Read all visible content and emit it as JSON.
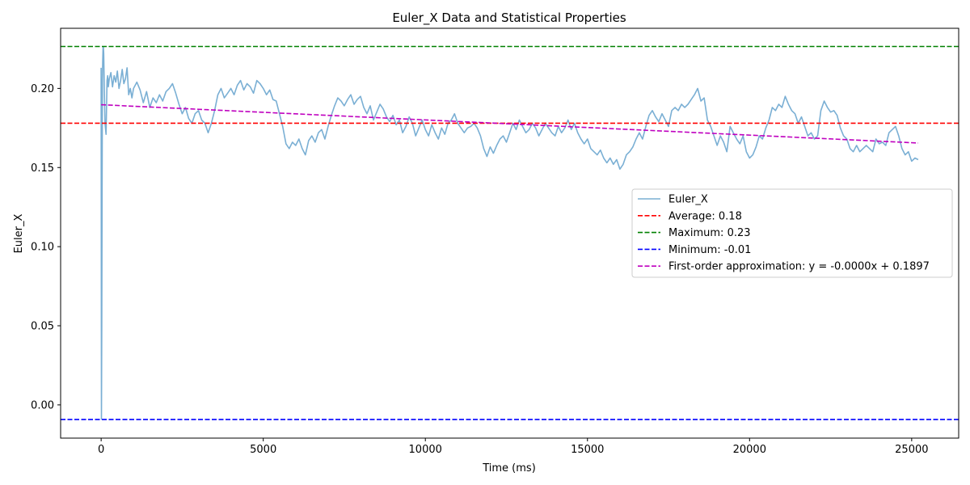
{
  "chart_data": {
    "type": "line",
    "title": "Euler_X Data and Statistical Properties",
    "xlabel": "Time (ms)",
    "ylabel": "Euler_X",
    "xlim": [
      -1250,
      26450
    ],
    "ylim": [
      -0.021,
      0.238
    ],
    "xticks": [
      0,
      5000,
      10000,
      15000,
      20000,
      25000
    ],
    "xtick_labels": [
      "0",
      "5000",
      "10000",
      "15000",
      "20000",
      "25000"
    ],
    "yticks": [
      0.0,
      0.05,
      0.1,
      0.15,
      0.2
    ],
    "ytick_labels": [
      "0.00",
      "0.05",
      "0.10",
      "0.15",
      "0.20"
    ],
    "grid": false,
    "legend_position": "center-right",
    "series": [
      {
        "name": "Euler_X",
        "color": "#7aafd4",
        "style": "solid",
        "x": [
          0,
          10,
          20,
          30,
          40,
          50,
          60,
          70,
          80,
          100,
          120,
          150,
          180,
          200,
          220,
          250,
          300,
          350,
          400,
          450,
          500,
          550,
          600,
          650,
          700,
          750,
          800,
          850,
          900,
          950,
          1000,
          1100,
          1200,
          1300,
          1400,
          1500,
          1600,
          1700,
          1800,
          1900,
          2000,
          2100,
          2200,
          2300,
          2400,
          2500,
          2600,
          2700,
          2800,
          2900,
          3000,
          3100,
          3200,
          3300,
          3400,
          3500,
          3600,
          3700,
          3800,
          3900,
          4000,
          4100,
          4200,
          4300,
          4400,
          4500,
          4600,
          4700,
          4800,
          4900,
          5000,
          5100,
          5200,
          5300,
          5400,
          5500,
          5600,
          5700,
          5800,
          5900,
          6000,
          6100,
          6200,
          6300,
          6400,
          6500,
          6600,
          6700,
          6800,
          6900,
          7000,
          7100,
          7200,
          7300,
          7400,
          7500,
          7600,
          7700,
          7800,
          7900,
          8000,
          8100,
          8200,
          8300,
          8400,
          8500,
          8600,
          8700,
          8800,
          8900,
          9000,
          9100,
          9200,
          9300,
          9400,
          9500,
          9600,
          9700,
          9800,
          9900,
          10000,
          10100,
          10200,
          10300,
          10400,
          10500,
          10600,
          10700,
          10800,
          10900,
          11000,
          11100,
          11200,
          11300,
          11400,
          11500,
          11600,
          11700,
          11800,
          11900,
          12000,
          12100,
          12200,
          12300,
          12400,
          12500,
          12600,
          12700,
          12800,
          12900,
          13000,
          13100,
          13200,
          13300,
          13400,
          13500,
          13600,
          13700,
          13800,
          13900,
          14000,
          14100,
          14200,
          14300,
          14400,
          14500,
          14600,
          14700,
          14800,
          14900,
          15000,
          15100,
          15200,
          15300,
          15400,
          15500,
          15600,
          15700,
          15800,
          15900,
          16000,
          16100,
          16200,
          16300,
          16400,
          16500,
          16600,
          16700,
          16800,
          16900,
          17000,
          17100,
          17200,
          17300,
          17400,
          17500,
          17600,
          17700,
          17800,
          17900,
          18000,
          18100,
          18200,
          18300,
          18400,
          18500,
          18600,
          18700,
          18800,
          18900,
          19000,
          19100,
          19200,
          19300,
          19400,
          19500,
          19600,
          19700,
          19800,
          19900,
          20000,
          20100,
          20200,
          20300,
          20400,
          20500,
          20600,
          20700,
          20800,
          20900,
          21000,
          21100,
          21200,
          21300,
          21400,
          21500,
          21600,
          21700,
          21800,
          21900,
          22000,
          22100,
          22200,
          22300,
          22400,
          22500,
          22600,
          22700,
          22800,
          22900,
          23000,
          23100,
          23200,
          23300,
          23400,
          23500,
          23600,
          23700,
          23800,
          23900,
          24000,
          24100,
          24200,
          24300,
          24400,
          24500,
          24600,
          24700,
          24800,
          24900,
          25000,
          25100,
          25200
        ],
        "y": [
          0.213,
          -0.009,
          0.05,
          0.135,
          0.205,
          0.218,
          0.226,
          0.226,
          0.222,
          0.198,
          0.178,
          0.171,
          0.205,
          0.208,
          0.201,
          0.206,
          0.21,
          0.201,
          0.208,
          0.204,
          0.211,
          0.2,
          0.205,
          0.212,
          0.203,
          0.206,
          0.213,
          0.196,
          0.2,
          0.194,
          0.2,
          0.204,
          0.199,
          0.191,
          0.198,
          0.188,
          0.194,
          0.191,
          0.196,
          0.192,
          0.198,
          0.2,
          0.203,
          0.197,
          0.19,
          0.184,
          0.188,
          0.181,
          0.178,
          0.184,
          0.186,
          0.18,
          0.178,
          0.172,
          0.178,
          0.186,
          0.196,
          0.2,
          0.194,
          0.197,
          0.2,
          0.196,
          0.202,
          0.205,
          0.199,
          0.203,
          0.201,
          0.197,
          0.205,
          0.203,
          0.2,
          0.196,
          0.199,
          0.193,
          0.192,
          0.184,
          0.176,
          0.165,
          0.162,
          0.166,
          0.164,
          0.168,
          0.162,
          0.158,
          0.167,
          0.17,
          0.166,
          0.172,
          0.174,
          0.168,
          0.176,
          0.183,
          0.189,
          0.194,
          0.192,
          0.189,
          0.193,
          0.196,
          0.19,
          0.193,
          0.195,
          0.188,
          0.184,
          0.189,
          0.18,
          0.185,
          0.19,
          0.187,
          0.182,
          0.179,
          0.183,
          0.177,
          0.18,
          0.172,
          0.176,
          0.182,
          0.178,
          0.17,
          0.175,
          0.18,
          0.174,
          0.17,
          0.177,
          0.172,
          0.168,
          0.175,
          0.171,
          0.178,
          0.18,
          0.184,
          0.178,
          0.175,
          0.172,
          0.175,
          0.176,
          0.178,
          0.175,
          0.17,
          0.162,
          0.157,
          0.163,
          0.159,
          0.164,
          0.168,
          0.17,
          0.166,
          0.172,
          0.178,
          0.174,
          0.18,
          0.176,
          0.172,
          0.174,
          0.178,
          0.175,
          0.17,
          0.174,
          0.178,
          0.175,
          0.172,
          0.17,
          0.176,
          0.172,
          0.175,
          0.18,
          0.174,
          0.178,
          0.172,
          0.168,
          0.165,
          0.168,
          0.162,
          0.16,
          0.158,
          0.161,
          0.156,
          0.153,
          0.156,
          0.152,
          0.155,
          0.149,
          0.152,
          0.158,
          0.16,
          0.163,
          0.168,
          0.172,
          0.168,
          0.176,
          0.183,
          0.186,
          0.182,
          0.179,
          0.184,
          0.18,
          0.176,
          0.186,
          0.188,
          0.186,
          0.19,
          0.188,
          0.19,
          0.193,
          0.196,
          0.2,
          0.192,
          0.194,
          0.18,
          0.176,
          0.17,
          0.164,
          0.17,
          0.166,
          0.16,
          0.176,
          0.172,
          0.168,
          0.165,
          0.17,
          0.16,
          0.156,
          0.158,
          0.163,
          0.17,
          0.168,
          0.175,
          0.18,
          0.188,
          0.186,
          0.19,
          0.188,
          0.195,
          0.19,
          0.186,
          0.184,
          0.178,
          0.182,
          0.176,
          0.17,
          0.172,
          0.168,
          0.17,
          0.186,
          0.192,
          0.188,
          0.185,
          0.186,
          0.183,
          0.175,
          0.17,
          0.168,
          0.162,
          0.16,
          0.164,
          0.16,
          0.162,
          0.164,
          0.162,
          0.16,
          0.168,
          0.165,
          0.166,
          0.164,
          0.172,
          0.174,
          0.176,
          0.17,
          0.162,
          0.158,
          0.16,
          0.154,
          0.156,
          0.155
        ]
      },
      {
        "name": "Average: 0.18",
        "color": "#ff0000",
        "style": "dashed",
        "type": "hline",
        "value": 0.178
      },
      {
        "name": "Maximum: 0.23",
        "color": "#008000",
        "style": "dashed",
        "type": "hline",
        "value": 0.2265
      },
      {
        "name": "Minimum: -0.01",
        "color": "#0000ff",
        "style": "dashed",
        "type": "hline",
        "value": -0.0092
      },
      {
        "name": "First-order approximation: y = -0.0000x + 0.1897",
        "color": "#bf00bf",
        "style": "dashed",
        "type": "segment",
        "x": [
          0,
          25200
        ],
        "y": [
          0.1897,
          0.1655
        ]
      }
    ]
  }
}
